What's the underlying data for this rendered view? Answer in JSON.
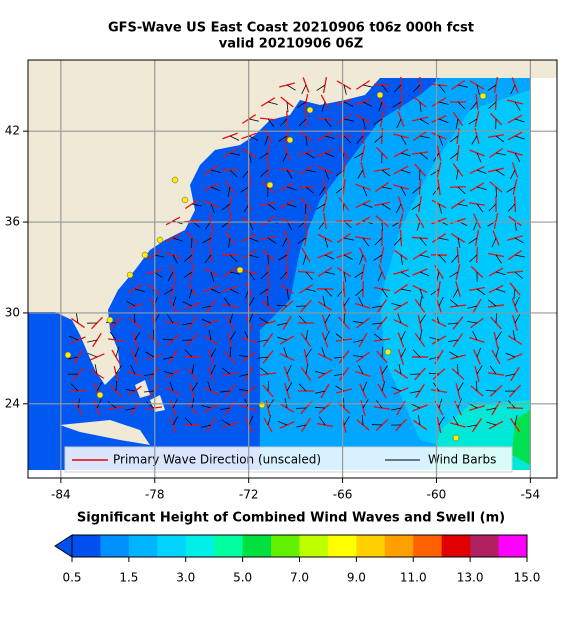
{
  "title": [
    "GFS-Wave US East Coast 20210906 t06z 000h fcst",
    "valid 20210906 06Z"
  ],
  "map": {
    "xlim": [
      -86.1,
      -52.3
    ],
    "ylim": [
      19.1,
      46.7
    ],
    "xticks": [
      -84,
      -78,
      -72,
      -66,
      -60,
      -54
    ],
    "yticks": [
      24,
      30,
      36,
      42
    ],
    "grid": true,
    "legend": [
      "Primary Wave Direction (unscaled)",
      "Wind Barbs"
    ]
  },
  "colorbar": {
    "title": "Significant Height of Combined Wind Waves and Swell (m)",
    "colors": [
      "#0050ee",
      "#0090ff",
      "#00b4ff",
      "#00d4ff",
      "#00f0e8",
      "#00ffa0",
      "#00e040",
      "#60f000",
      "#c0ff00",
      "#ffff00",
      "#ffd000",
      "#ffa000",
      "#ff6000",
      "#e00000",
      "#b02060",
      "#ff00ff"
    ],
    "ticks": [
      0.5,
      1.5,
      {
        "value": 3,
        "label": "3.0"
      },
      {
        "value": 5,
        "label": "5.0"
      },
      {
        "value": 7,
        "label": "7.0"
      },
      {
        "value": 9,
        "label": "9.0"
      },
      {
        "value": 11,
        "label": "11.0"
      },
      {
        "value": 13,
        "label": "13.0"
      },
      {
        "value": 15,
        "label": "15.0"
      }
    ]
  }
}
